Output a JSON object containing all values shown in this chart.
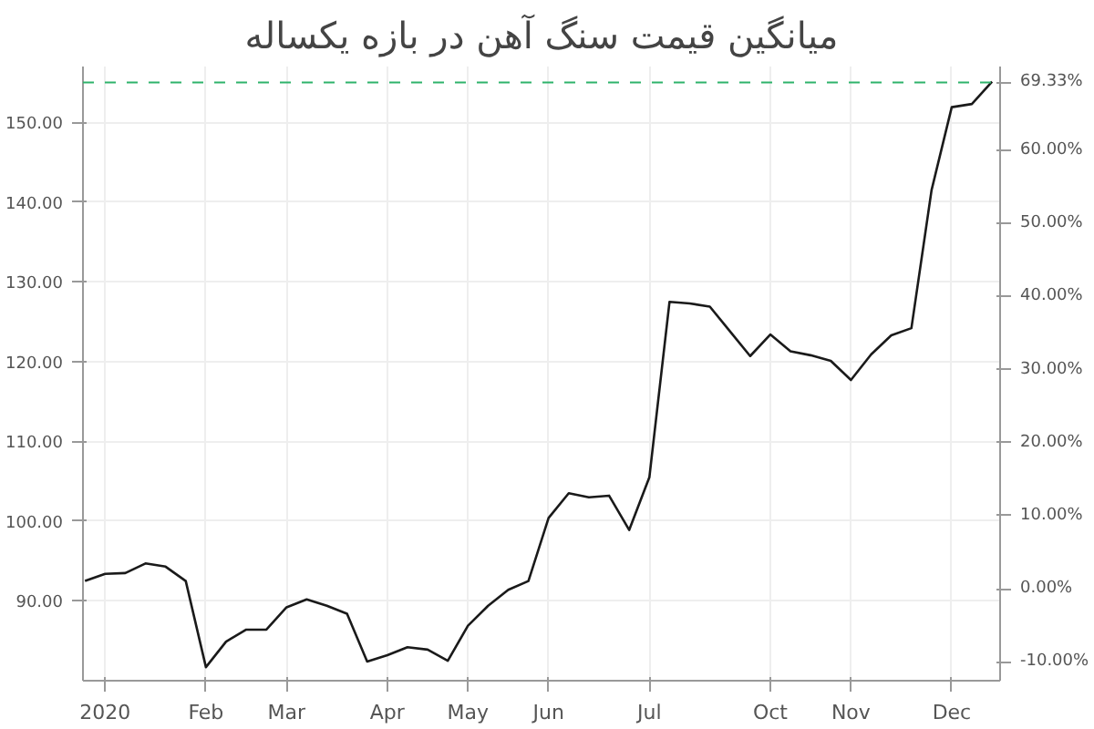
{
  "chart_data": {
    "type": "line",
    "title": "میانگین قیمت سنگ آهن در بازه یکساله",
    "categories": [
      null,
      "2020",
      null,
      null,
      null,
      null,
      "Feb",
      null,
      null,
      null,
      "Mar",
      null,
      null,
      null,
      null,
      "Apr",
      null,
      null,
      null,
      "May",
      null,
      null,
      null,
      "Jun",
      null,
      null,
      null,
      null,
      "Jul",
      null,
      null,
      null,
      null,
      null,
      "Oct",
      null,
      null,
      null,
      "Nov",
      null,
      null,
      null,
      null,
      "Dec",
      null,
      null
    ],
    "series": [
      {
        "color": "#1a1a1a",
        "values": [
          92.5,
          93.4,
          93.5,
          94.7,
          94.3,
          92.5,
          81.7,
          84.9,
          86.4,
          86.4,
          89.2,
          90.2,
          89.4,
          88.4,
          82.4,
          83.2,
          84.2,
          83.9,
          82.5,
          86.9,
          89.4,
          91.4,
          92.5,
          100.4,
          103.5,
          103.0,
          103.2,
          98.9,
          105.5,
          127.5,
          127.3,
          126.9,
          123.8,
          120.7,
          123.4,
          121.3,
          120.8,
          120.1,
          117.7,
          120.9,
          123.3,
          124.2,
          141.5,
          151.9,
          152.3,
          155.1
        ]
      }
    ],
    "ylim": [
      80,
      157
    ],
    "yticks": [
      {
        "value": 90,
        "label": "90.00"
      },
      {
        "value": 100,
        "label": "100.00"
      },
      {
        "value": 110,
        "label": "110.00"
      },
      {
        "value": 120,
        "label": "120.00"
      },
      {
        "value": 130,
        "label": "130.00"
      },
      {
        "value": 140,
        "label": "140.00"
      },
      {
        "value": 150,
        "label": "150.00"
      }
    ],
    "y2lim": [
      -12.6,
      71.5
    ],
    "y2ticks": [
      {
        "value": -10,
        "label": "-10.00%"
      },
      {
        "value": 0,
        "label": "0.00%"
      },
      {
        "value": 10,
        "label": "10.00%"
      },
      {
        "value": 20,
        "label": "20.00%"
      },
      {
        "value": 30,
        "label": "30.00%"
      },
      {
        "value": 40,
        "label": "40.00%"
      },
      {
        "value": 50,
        "label": "50.00%"
      },
      {
        "value": 60,
        "label": "60.00%"
      }
    ],
    "ref_lines": [
      {
        "axis": "y2",
        "value": 69.33,
        "label": "69.33%",
        "color": "#2fb36b",
        "line_style": "dashed"
      }
    ],
    "grid": true,
    "marker": "none",
    "line_style": "solid"
  }
}
